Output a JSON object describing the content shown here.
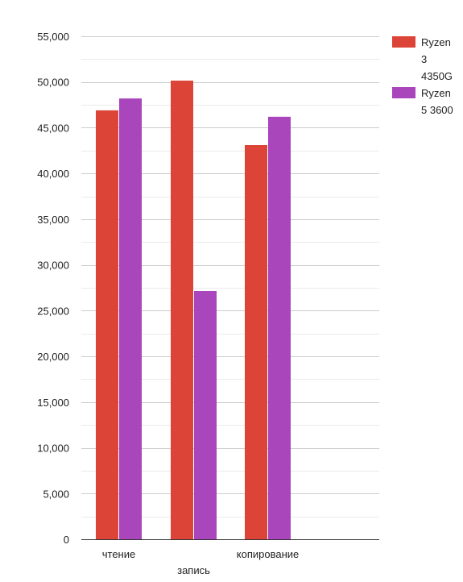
{
  "chart_data": {
    "type": "bar",
    "categories": [
      "чтение",
      "запись",
      "копирование"
    ],
    "series": [
      {
        "name": "Ryzen 3 4350G",
        "name_lines": [
          "Ryzen",
          "3",
          "4350G"
        ],
        "color": "#dc4437",
        "values": [
          46900,
          50150,
          43100
        ]
      },
      {
        "name": "Ryzen 5 3600",
        "name_lines": [
          "Ryzen",
          "5 3600"
        ],
        "color": "#aa46bc",
        "values": [
          48200,
          27150,
          46200
        ]
      }
    ],
    "ylim": [
      0,
      55000
    ],
    "yticks": [
      "0",
      "5,000",
      "10,000",
      "15,000",
      "20,000",
      "25,000",
      "30,000",
      "35,000",
      "40,000",
      "45,000",
      "50,000",
      "55,000"
    ],
    "ytick_values": [
      0,
      5000,
      10000,
      15000,
      20000,
      25000,
      30000,
      35000,
      40000,
      45000,
      50000,
      55000
    ],
    "grid": true,
    "minor_grid": true,
    "legend_position": "right",
    "title": "",
    "xlabel": "",
    "ylabel": ""
  }
}
